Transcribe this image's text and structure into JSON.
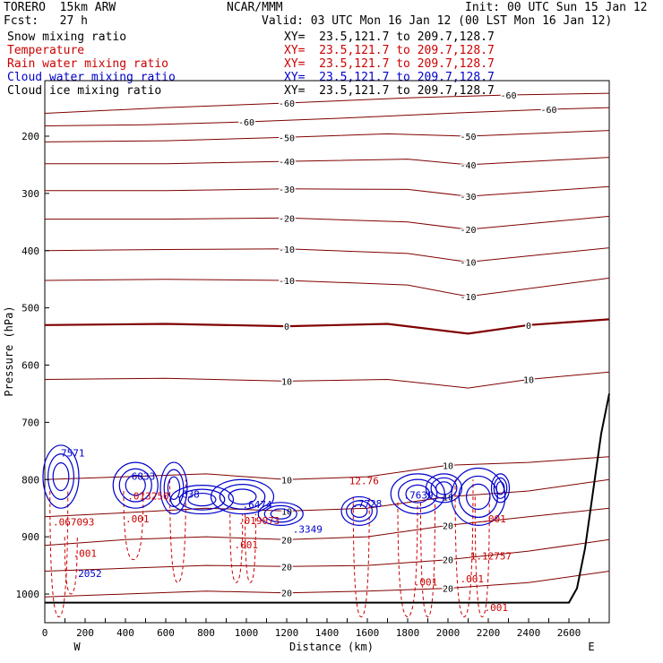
{
  "header": {
    "model": "TORERO  15km ARW",
    "org": "NCAR/MMM",
    "init": "Init: 00 UTC Sun 15 Jan 12",
    "fcst": "Fcst:   27 h",
    "valid": "Valid: 03 UTC Mon 16 Jan 12 (00 LST Mon 16 Jan 12)"
  },
  "legend": [
    {
      "name": "Snow mixing ratio",
      "color": "#000000",
      "xy": "XY=  23.5,121.7 to 209.7,128.7"
    },
    {
      "name": "Temperature",
      "color": "#cc0000",
      "xy": "XY=  23.5,121.7 to 209.7,128.7"
    },
    {
      "name": "Rain water mixing ratio",
      "color": "#cc0000",
      "xy": "XY=  23.5,121.7 to 209.7,128.7"
    },
    {
      "name": "Cloud water mixing ratio",
      "color": "#0000cc",
      "xy": "XY=  23.5,121.7 to 209.7,128.7"
    },
    {
      "name": "Cloud ice mixing ratio",
      "color": "#000000",
      "xy": "XY=  23.5,121.7 to 209.7,128.7"
    }
  ],
  "colors": {
    "temperature": "#800000",
    "rain": "#cc0000",
    "cloud_water": "#0000cc",
    "terrain": "#000000"
  },
  "chart_data": {
    "type": "contour",
    "xlabel": "Distance (km)",
    "ylabel": "Pressure (hPa)",
    "xlim": [
      0,
      2800
    ],
    "ylim": [
      1050,
      130
    ],
    "x_ticks": [
      0,
      100,
      200,
      300,
      400,
      500,
      600,
      700,
      800,
      900,
      1000,
      1100,
      1200,
      1300,
      1400,
      1500,
      1600,
      1700,
      1800,
      1900,
      2000,
      2100,
      2200,
      2300,
      2400,
      2500,
      2600,
      2700
    ],
    "x_tick_labels": [
      "0",
      "200",
      "400",
      "600",
      "800",
      "1000",
      "1200",
      "1400",
      "1600",
      "1800",
      "2000",
      "2200",
      "2400",
      "2600"
    ],
    "y_ticks": [
      200,
      300,
      400,
      500,
      600,
      700,
      800,
      900,
      1000
    ],
    "endpoints": {
      "left": "W",
      "right": "E"
    },
    "temperature_contours": [
      {
        "label": "-60",
        "points": [
          [
            0,
            160
          ],
          [
            600,
            150
          ],
          [
            1200,
            142
          ],
          [
            1800,
            133
          ],
          [
            2300,
            128
          ],
          [
            2800,
            125
          ]
        ]
      },
      {
        "label": "-60",
        "points": [
          [
            0,
            182
          ],
          [
            500,
            180
          ],
          [
            1000,
            175
          ],
          [
            1500,
            168
          ],
          [
            2000,
            160
          ],
          [
            2500,
            153
          ],
          [
            2800,
            150
          ]
        ]
      },
      {
        "label": "-50",
        "points": [
          [
            0,
            210
          ],
          [
            600,
            208
          ],
          [
            1200,
            202
          ],
          [
            1700,
            196
          ],
          [
            2100,
            200
          ],
          [
            2800,
            190
          ]
        ]
      },
      {
        "label": "-40",
        "points": [
          [
            0,
            248
          ],
          [
            600,
            248
          ],
          [
            1200,
            244
          ],
          [
            1800,
            240
          ],
          [
            2100,
            250
          ],
          [
            2800,
            237
          ]
        ]
      },
      {
        "label": "-30",
        "points": [
          [
            0,
            295
          ],
          [
            600,
            295
          ],
          [
            1200,
            292
          ],
          [
            1800,
            293
          ],
          [
            2100,
            305
          ],
          [
            2800,
            288
          ]
        ]
      },
      {
        "label": "-20",
        "points": [
          [
            0,
            345
          ],
          [
            600,
            345
          ],
          [
            1200,
            343
          ],
          [
            1800,
            350
          ],
          [
            2100,
            363
          ],
          [
            2800,
            340
          ]
        ]
      },
      {
        "label": "-10",
        "points": [
          [
            0,
            400
          ],
          [
            600,
            398
          ],
          [
            1200,
            397
          ],
          [
            1800,
            405
          ],
          [
            2100,
            420
          ],
          [
            2800,
            395
          ]
        ]
      },
      {
        "label": "-10",
        "points": [
          [
            0,
            452
          ],
          [
            600,
            450
          ],
          [
            1200,
            452
          ],
          [
            1800,
            460
          ],
          [
            2100,
            480
          ],
          [
            2800,
            448
          ]
        ]
      },
      {
        "label": "0",
        "points": [
          [
            0,
            530
          ],
          [
            600,
            528
          ],
          [
            1200,
            532
          ],
          [
            1700,
            528
          ],
          [
            2100,
            545
          ],
          [
            2400,
            530
          ],
          [
            2800,
            520
          ]
        ]
      },
      {
        "label": "10",
        "points": [
          [
            0,
            625
          ],
          [
            600,
            623
          ],
          [
            1200,
            628
          ],
          [
            1700,
            625
          ],
          [
            2100,
            640
          ],
          [
            2400,
            625
          ],
          [
            2800,
            612
          ]
        ]
      },
      {
        "label": "10",
        "points": [
          [
            0,
            800
          ],
          [
            400,
            795
          ],
          [
            800,
            790
          ],
          [
            1200,
            800
          ],
          [
            1600,
            795
          ],
          [
            2000,
            775
          ],
          [
            2400,
            770
          ],
          [
            2800,
            760
          ]
        ]
      },
      {
        "label": "10",
        "points": [
          [
            0,
            865
          ],
          [
            400,
            858
          ],
          [
            800,
            850
          ],
          [
            1200,
            855
          ],
          [
            1600,
            850
          ],
          [
            2000,
            830
          ],
          [
            2400,
            820
          ],
          [
            2800,
            800
          ]
        ]
      },
      {
        "label": "20",
        "points": [
          [
            0,
            915
          ],
          [
            400,
            905
          ],
          [
            800,
            900
          ],
          [
            1200,
            905
          ],
          [
            1600,
            900
          ],
          [
            2000,
            880
          ],
          [
            2400,
            865
          ],
          [
            2800,
            850
          ]
        ]
      },
      {
        "label": "20",
        "points": [
          [
            0,
            960
          ],
          [
            400,
            955
          ],
          [
            800,
            950
          ],
          [
            1200,
            952
          ],
          [
            1600,
            950
          ],
          [
            2000,
            940
          ],
          [
            2400,
            925
          ],
          [
            2800,
            905
          ]
        ]
      },
      {
        "label": "20",
        "points": [
          [
            0,
            1005
          ],
          [
            400,
            1000
          ],
          [
            800,
            995
          ],
          [
            1200,
            998
          ],
          [
            1600,
            995
          ],
          [
            2000,
            990
          ],
          [
            2400,
            980
          ],
          [
            2800,
            960
          ]
        ]
      }
    ],
    "data_labels": [
      {
        "text": "7571",
        "x": 80,
        "y": 760,
        "color": "#0000cc"
      },
      {
        "text": "6833",
        "x": 430,
        "y": 800,
        "color": "#0000cc"
      },
      {
        "text": ".013250",
        "x": 410,
        "y": 835,
        "color": "#cc0000"
      },
      {
        "text": ".638",
        "x": 650,
        "y": 832,
        "color": "#0000cc"
      },
      {
        "text": ".6474",
        "x": 980,
        "y": 850,
        "color": "#0000cc"
      },
      {
        "text": ".019073",
        "x": 960,
        "y": 878,
        "color": "#cc0000"
      },
      {
        "text": ".3349",
        "x": 1230,
        "y": 893,
        "color": "#0000cc"
      },
      {
        "text": "12.76",
        "x": 1510,
        "y": 808,
        "color": "#cc0000"
      },
      {
        "text": ".7728",
        "x": 1525,
        "y": 848,
        "color": "#0000cc"
      },
      {
        "text": ".7639",
        "x": 1780,
        "y": 833,
        "color": "#0000cc"
      },
      {
        "text": ".067093",
        "x": 40,
        "y": 880,
        "color": "#cc0000"
      },
      {
        "text": ".001",
        "x": 140,
        "y": 935,
        "color": "#cc0000"
      },
      {
        "text": "2052",
        "x": 165,
        "y": 970,
        "color": "#0000cc"
      },
      {
        "text": ".001",
        "x": 400,
        "y": 875,
        "color": "#cc0000"
      },
      {
        "text": ".001",
        "x": 940,
        "y": 920,
        "color": "#cc0000"
      },
      {
        "text": ".001",
        "x": 1830,
        "y": 985,
        "color": "#cc0000"
      },
      {
        "text": ".001",
        "x": 2060,
        "y": 980,
        "color": "#cc0000"
      },
      {
        "text": ".001",
        "x": 2170,
        "y": 875,
        "color": "#cc0000"
      },
      {
        "text": "1.12757",
        "x": 2110,
        "y": 940,
        "color": "#cc0000"
      },
      {
        "text": ".001",
        "x": 2180,
        "y": 1030,
        "color": "#cc0000"
      }
    ]
  }
}
